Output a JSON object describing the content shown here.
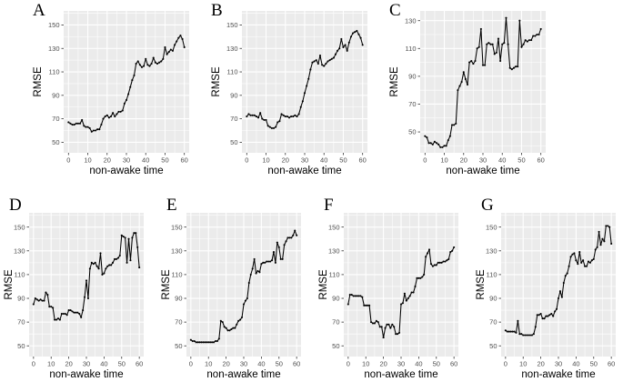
{
  "figure": {
    "background": "#ffffff",
    "panel_bg": "#ebebeb",
    "grid_color": "#ffffff",
    "line_color": "#000000",
    "tick_text_color": "#4d4d4d",
    "axis_text_color": "#000000"
  },
  "chart_data": [
    {
      "type": "line",
      "panel": "A",
      "row": "top",
      "xlabel": "non-awake time",
      "ylabel": "RMSE",
      "xticks": [
        0,
        10,
        20,
        30,
        40,
        50,
        60
      ],
      "yticks": [
        50,
        70,
        90,
        110,
        130,
        150
      ],
      "xlim": [
        -2.5,
        62.5
      ],
      "ylim": [
        41,
        162
      ],
      "x_start": 0,
      "x_step": 1,
      "values": [
        67,
        66,
        65,
        65,
        66,
        66,
        66,
        69,
        64,
        63,
        63,
        62,
        59,
        60,
        60,
        61,
        61,
        65,
        70,
        72,
        73,
        71,
        72,
        75,
        72,
        74,
        76,
        76,
        77,
        83,
        86,
        91,
        97,
        103,
        107,
        117,
        119,
        116,
        114,
        115,
        121,
        116,
        115,
        117,
        122,
        118,
        117,
        118,
        119,
        121,
        131,
        125,
        127,
        129,
        128,
        133,
        136,
        139,
        141,
        138,
        131
      ]
    },
    {
      "type": "line",
      "panel": "B",
      "row": "top",
      "xlabel": "non-awake time",
      "ylabel": "RMSE",
      "xticks": [
        0,
        10,
        20,
        30,
        40,
        50,
        60
      ],
      "yticks": [
        50,
        70,
        90,
        110,
        130,
        150
      ],
      "xlim": [
        -2.5,
        62.5
      ],
      "ylim": [
        41,
        162
      ],
      "x_start": 0,
      "x_step": 1,
      "values": [
        72,
        74,
        73,
        73,
        73,
        72,
        71,
        75,
        70,
        69,
        69,
        64,
        63,
        62,
        62,
        63,
        67,
        68,
        74,
        73,
        72,
        72,
        71,
        72,
        72,
        73,
        72,
        74,
        80,
        85,
        92,
        98,
        104,
        112,
        118,
        119,
        120,
        117,
        124,
        116,
        115,
        117,
        119,
        120,
        121,
        122,
        125,
        128,
        130,
        138,
        131,
        133,
        128,
        135,
        140,
        143,
        144,
        145,
        142,
        139,
        133
      ]
    },
    {
      "type": "line",
      "panel": "C",
      "row": "top",
      "xlabel": "non-awake time",
      "ylabel": "RMSE",
      "xticks": [
        0,
        10,
        20,
        30,
        40,
        50,
        60
      ],
      "yticks": [
        50,
        70,
        90,
        110,
        130
      ],
      "xlim": [
        -2.5,
        62.5
      ],
      "ylim": [
        35,
        137
      ],
      "x_start": 0,
      "x_step": 1,
      "values": [
        47,
        46,
        42,
        42,
        41,
        43,
        42,
        41,
        39,
        39,
        40,
        40,
        44,
        47,
        55,
        55,
        56,
        80,
        83,
        86,
        93,
        88,
        84,
        100,
        101,
        99,
        101,
        110,
        111,
        124,
        98,
        98,
        113,
        114,
        113,
        113,
        106,
        107,
        117,
        101,
        113,
        114,
        132,
        113,
        96,
        95,
        96,
        97,
        97,
        130,
        111,
        113,
        116,
        115,
        116,
        116,
        119,
        119,
        120,
        120,
        124
      ]
    },
    {
      "type": "line",
      "panel": "D",
      "row": "bottom",
      "xlabel": "non-awake time",
      "ylabel": "RMSE",
      "xticks": [
        0,
        10,
        20,
        30,
        40,
        50,
        60
      ],
      "yticks": [
        50,
        70,
        90,
        110,
        130,
        150
      ],
      "xlim": [
        -2.5,
        62.5
      ],
      "ylim": [
        41,
        162
      ],
      "x_start": 0,
      "x_step": 1,
      "values": [
        85,
        90,
        89,
        88,
        89,
        88,
        88,
        95,
        93,
        83,
        83,
        82,
        72,
        72,
        73,
        72,
        77,
        77,
        77,
        76,
        80,
        80,
        79,
        78,
        78,
        78,
        77,
        74,
        80,
        91,
        105,
        90,
        115,
        120,
        119,
        120,
        117,
        115,
        128,
        110,
        111,
        115,
        117,
        118,
        118,
        120,
        123,
        123,
        124,
        126,
        143,
        142,
        141,
        120,
        140,
        122,
        141,
        145,
        145,
        133,
        116
      ]
    },
    {
      "type": "line",
      "panel": "E",
      "row": "bottom",
      "xlabel": "non-awake time",
      "ylabel": "RMSE",
      "xticks": [
        0,
        10,
        20,
        30,
        40,
        50,
        60
      ],
      "yticks": [
        50,
        70,
        90,
        110,
        130,
        150
      ],
      "xlim": [
        -2.5,
        62.5
      ],
      "ylim": [
        41,
        162
      ],
      "x_start": 0,
      "x_step": 1,
      "values": [
        55,
        54,
        54,
        53,
        53,
        53,
        53,
        53,
        53,
        53,
        53,
        53,
        53,
        53,
        54,
        54,
        56,
        71,
        70,
        66,
        65,
        63,
        63,
        64,
        65,
        65,
        68,
        71,
        72,
        74,
        85,
        88,
        90,
        103,
        110,
        115,
        123,
        111,
        113,
        112,
        119,
        120,
        120,
        121,
        121,
        121,
        122,
        129,
        120,
        137,
        133,
        123,
        123,
        135,
        138,
        141,
        141,
        141,
        143,
        147,
        143
      ]
    },
    {
      "type": "line",
      "panel": "F",
      "row": "bottom",
      "xlabel": "non-awake time",
      "ylabel": "RMSE",
      "xticks": [
        0,
        10,
        20,
        30,
        40,
        50,
        60
      ],
      "yticks": [
        50,
        70,
        90,
        110,
        130,
        150
      ],
      "xlim": [
        -2.5,
        62.5
      ],
      "ylim": [
        41,
        162
      ],
      "x_start": 0,
      "x_step": 1,
      "values": [
        85,
        93,
        93,
        92,
        92,
        92,
        92,
        92,
        91,
        84,
        84,
        84,
        84,
        70,
        69,
        69,
        71,
        70,
        66,
        66,
        57,
        65,
        68,
        68,
        65,
        68,
        66,
        60,
        60,
        61,
        85,
        86,
        94,
        88,
        90,
        92,
        95,
        95,
        100,
        107,
        107,
        107,
        108,
        110,
        125,
        128,
        131,
        119,
        117,
        118,
        118,
        120,
        120,
        120,
        121,
        121,
        122,
        123,
        129,
        130,
        133
      ]
    },
    {
      "type": "line",
      "panel": "G",
      "row": "bottom",
      "xlabel": "non-awake time",
      "ylabel": "RMSE",
      "xticks": [
        0,
        10,
        20,
        30,
        40,
        50,
        60
      ],
      "yticks": [
        50,
        70,
        90,
        110,
        130,
        150
      ],
      "xlim": [
        -2.5,
        62.5
      ],
      "ylim": [
        41,
        162
      ],
      "x_start": 0,
      "x_step": 1,
      "values": [
        63,
        62,
        62,
        62,
        62,
        62,
        61,
        71,
        60,
        60,
        59,
        59,
        59,
        59,
        59,
        59,
        60,
        66,
        76,
        76,
        77,
        73,
        73,
        75,
        75,
        76,
        77,
        75,
        79,
        81,
        90,
        96,
        91,
        103,
        109,
        111,
        117,
        125,
        127,
        128,
        122,
        119,
        129,
        120,
        122,
        117,
        117,
        121,
        120,
        122,
        123,
        131,
        133,
        146,
        135,
        140,
        138,
        151,
        151,
        150,
        136
      ]
    }
  ]
}
